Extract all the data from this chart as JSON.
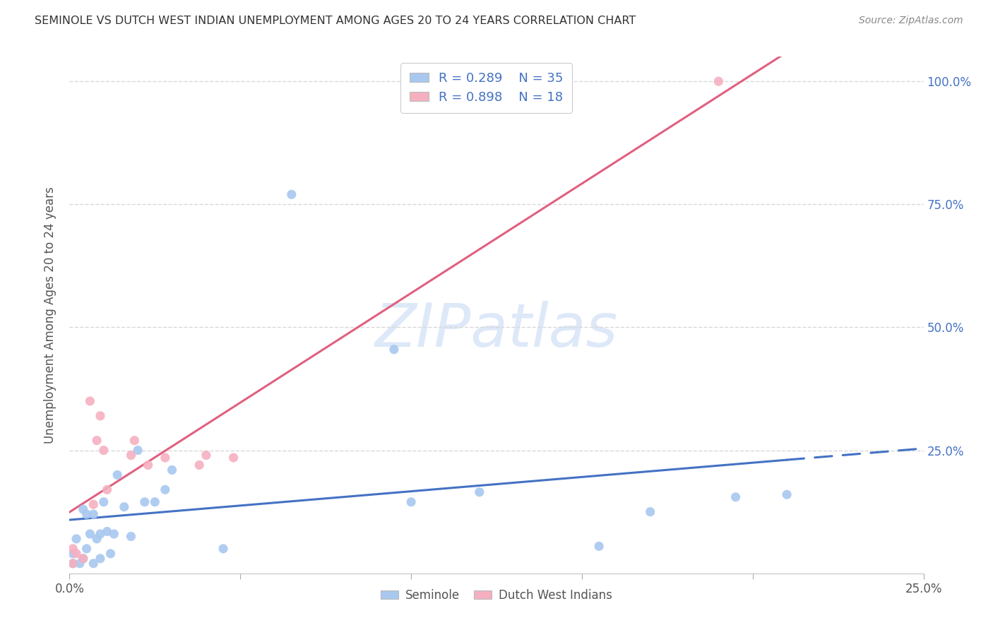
{
  "title": "SEMINOLE VS DUTCH WEST INDIAN UNEMPLOYMENT AMONG AGES 20 TO 24 YEARS CORRELATION CHART",
  "source": "Source: ZipAtlas.com",
  "ylabel": "Unemployment Among Ages 20 to 24 years",
  "xlim": [
    0.0,
    0.25
  ],
  "ylim": [
    0.0,
    1.05
  ],
  "seminole_R": 0.289,
  "seminole_N": 35,
  "dutch_R": 0.898,
  "dutch_N": 18,
  "seminole_color": "#a8c8f0",
  "dutch_color": "#f5b0c0",
  "seminole_line_color": "#4472c4",
  "dutch_line_color": "#e06080",
  "seminole_line_solid_end": 0.21,
  "dutch_line_y0": -0.02,
  "dutch_line_y1": 1.04,
  "seminole_line_y0": 0.05,
  "seminole_line_y1": 0.285,
  "seminole_x": [
    0.001,
    0.001,
    0.002,
    0.003,
    0.004,
    0.004,
    0.005,
    0.005,
    0.006,
    0.007,
    0.007,
    0.008,
    0.009,
    0.009,
    0.01,
    0.011,
    0.012,
    0.013,
    0.014,
    0.016,
    0.018,
    0.02,
    0.022,
    0.025,
    0.028,
    0.03,
    0.045,
    0.065,
    0.095,
    0.1,
    0.12,
    0.155,
    0.17,
    0.195,
    0.21
  ],
  "seminole_y": [
    0.02,
    0.04,
    0.07,
    0.02,
    0.03,
    0.13,
    0.05,
    0.12,
    0.08,
    0.02,
    0.12,
    0.07,
    0.03,
    0.08,
    0.145,
    0.085,
    0.04,
    0.08,
    0.2,
    0.135,
    0.075,
    0.25,
    0.145,
    0.145,
    0.17,
    0.21,
    0.05,
    0.77,
    0.455,
    0.145,
    0.165,
    0.055,
    0.125,
    0.155,
    0.16
  ],
  "dutch_x": [
    0.001,
    0.001,
    0.002,
    0.004,
    0.006,
    0.007,
    0.008,
    0.009,
    0.01,
    0.011,
    0.018,
    0.019,
    0.023,
    0.028,
    0.038,
    0.04,
    0.048,
    0.19
  ],
  "dutch_y": [
    0.02,
    0.05,
    0.04,
    0.03,
    0.35,
    0.14,
    0.27,
    0.32,
    0.25,
    0.17,
    0.24,
    0.27,
    0.22,
    0.235,
    0.22,
    0.24,
    0.235,
    1.0
  ],
  "watermark_text": "ZIPatlas",
  "background_color": "#ffffff",
  "grid_color": "#d8d8d8"
}
